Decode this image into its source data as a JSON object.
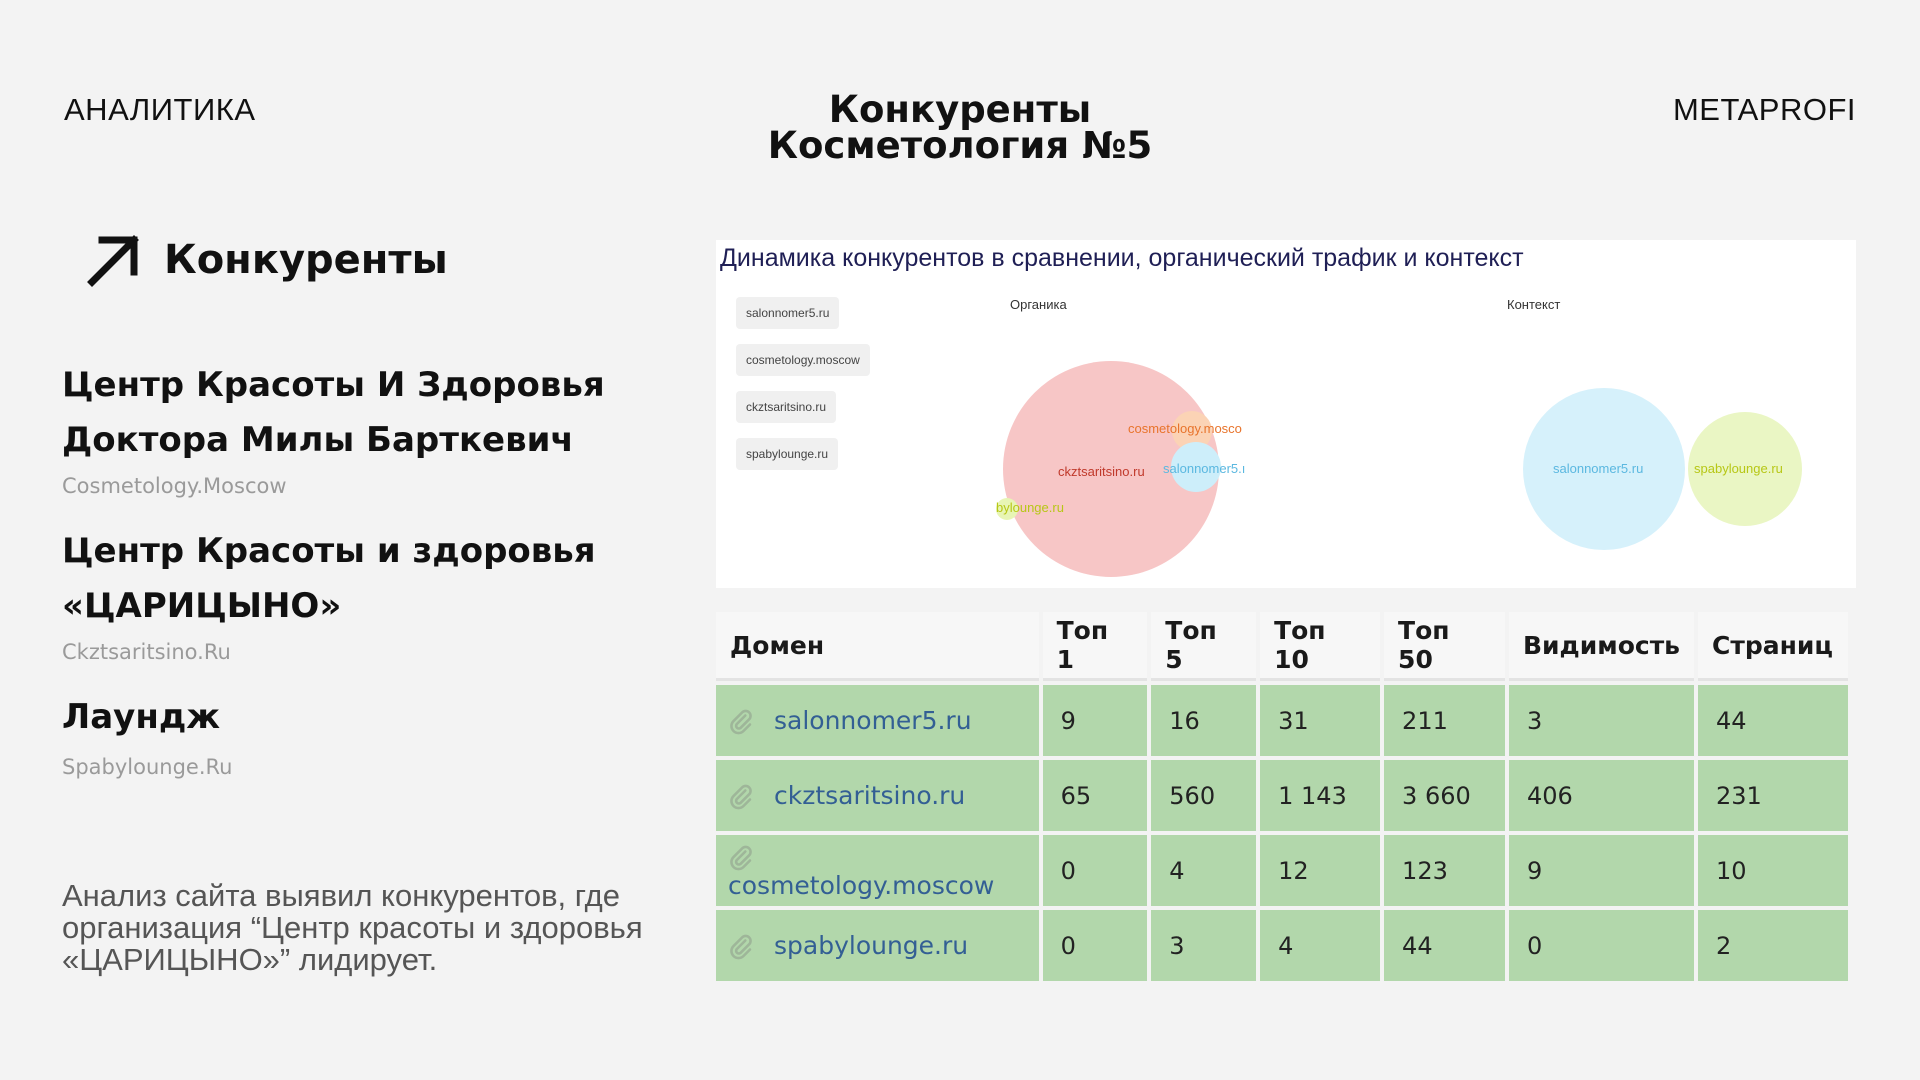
{
  "header": {
    "left": "АНАЛИТИКА",
    "title_line1": "Конкуренты",
    "title_line2": "Косметология №5",
    "right": "METAPROFI"
  },
  "section": {
    "icon": "arrow-up-right-icon",
    "title": "Конкуренты"
  },
  "competitors": [
    {
      "name_line1": "Центр Красоты И Здоровья",
      "name_line2": "Доктора Милы Барткевич",
      "url": "Cosmetology.Moscow"
    },
    {
      "name_line1": "Центр Красоты и здоровья",
      "name_line2": "«ЦАРИЦЫНО»",
      "url": "Ckztsaritsino.Ru"
    },
    {
      "name_line1": "Лаундж",
      "name_line2": "",
      "url": "Spabylounge.Ru"
    }
  ],
  "description": "Анализ сайта выявил конкурентов, где организация “Центр красоты и здоровья «ЦАРИЦЫНО»” лидирует.",
  "bubble_chart": {
    "title": "Динамика конкурентов в сравнении, органический трафик и контекст",
    "legend": [
      "salonnomer5.ru",
      "cosmetology.moscow",
      "ckztsaritsino.ru",
      "spabylounge.ru"
    ],
    "organic_label": "Органика",
    "context_label": "Контекст",
    "organic": [
      {
        "label": "ckztsaritsino.ru",
        "color": "#f7c6c6",
        "text_color": "#c0392b"
      },
      {
        "label": "cosmetology.mosco",
        "color": "#fbd3b5",
        "text_color": "#e8742c"
      },
      {
        "label": "salonnomer5.ı",
        "color": "#cdeefa",
        "text_color": "#5bb8e0"
      },
      {
        "label": "bylounge.ru",
        "color": "#e8f5b5",
        "text_color": "#b7c716"
      }
    ],
    "context": [
      {
        "label": "salonnomer5.ru",
        "color": "#d6f1fb",
        "text_color": "#5bb8e0"
      },
      {
        "label": "spabylounge.ru",
        "color": "#eaf6c4",
        "text_color": "#b7c716"
      }
    ]
  },
  "table": {
    "headers": [
      "Домен",
      "Топ 1",
      "Топ 5",
      "Топ 10",
      "Топ 50",
      "Видимость",
      "Страниц"
    ],
    "rows": [
      [
        "salonnomer5.ru",
        "9",
        "16",
        "31",
        "211",
        "3",
        "44"
      ],
      [
        "ckztsaritsino.ru",
        "65",
        "560",
        "1 143",
        "3 660",
        "406",
        "231"
      ],
      [
        "cosmetology.moscow",
        "0",
        "4",
        "12",
        "123",
        "9",
        "10"
      ],
      [
        "spabylounge.ru",
        "0",
        "3",
        "4",
        "44",
        "0",
        "2"
      ]
    ]
  },
  "colors": {
    "row_green": "#b2d7ab",
    "link_blue": "#335f94",
    "background": "#f3f3f3"
  }
}
